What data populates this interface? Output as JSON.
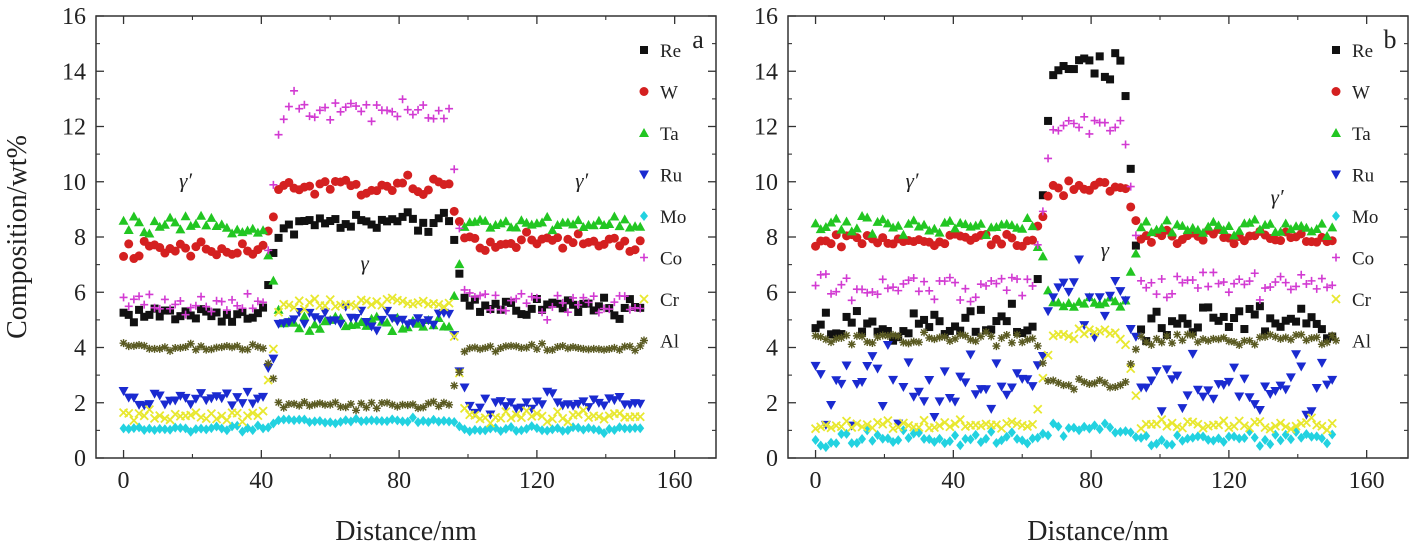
{
  "shared": {
    "ylabel": "Composition/wt%",
    "xlabel": "Distance/nm"
  },
  "colors": {
    "Re": "#111111",
    "W": "#d42020",
    "Ta": "#22c622",
    "Ru": "#1a2ad0",
    "Mo": "#22d2e0",
    "Co": "#d23ad2",
    "Cr": "#e8e830",
    "Al": "#5a5a22"
  },
  "chart_data": [
    {
      "type": "scatter",
      "panel": "a",
      "xlabel": "Distance/nm",
      "ylabel": "Composition/wt%",
      "xlim": [
        -8,
        172
      ],
      "ylim": [
        0,
        16
      ],
      "xticks": [
        "0",
        "40",
        "80",
        "120",
        "160"
      ],
      "yticks": [
        "0",
        "2",
        "4",
        "6",
        "8",
        "10",
        "12",
        "14",
        "16"
      ],
      "legend": [
        "Re",
        "W",
        "Ta",
        "Ru",
        "Mo",
        "Co",
        "Cr",
        "Al"
      ],
      "legend_position": "top-right",
      "annotations": [
        {
          "text": "γ′",
          "x": 18,
          "y": 9.8
        },
        {
          "text": "γ",
          "x": 70,
          "y": 6.8
        },
        {
          "text": "γ′",
          "x": 133,
          "y": 9.8
        }
      ],
      "series": [
        {
          "name": "Re",
          "marker": "square",
          "left": 5.2,
          "mid": 8.5,
          "right": 5.5,
          "noise": 0.25,
          "x": [
            0,
            150
          ],
          "step": 1.5,
          "transitions": [
            43,
            97
          ]
        },
        {
          "name": "W",
          "marker": "circle",
          "left": 7.5,
          "mid": 9.8,
          "right": 7.8,
          "noise": 0.25
        },
        {
          "name": "Ta",
          "marker": "tri-up",
          "left": 8.4,
          "mid": 4.9,
          "right": 8.5,
          "noise": 0.2
        },
        {
          "name": "Ru",
          "marker": "tri-down",
          "left": 2.1,
          "mid": 5.0,
          "right": 2.0,
          "noise": 0.25
        },
        {
          "name": "Mo",
          "marker": "diamond",
          "left": 1.05,
          "mid": 1.35,
          "right": 1.05,
          "noise": 0.08
        },
        {
          "name": "Co",
          "marker": "plus",
          "left": 5.6,
          "mid": 12.7,
          "right": 5.6,
          "noise": 0.35
        },
        {
          "name": "Cr",
          "marker": "cross",
          "left": 1.5,
          "mid": 5.6,
          "right": 1.5,
          "noise": 0.15
        },
        {
          "name": "Al",
          "marker": "star",
          "left": 4.0,
          "mid": 1.9,
          "right": 4.0,
          "noise": 0.12
        }
      ]
    },
    {
      "type": "scatter",
      "panel": "b",
      "xlabel": "Distance/nm",
      "ylabel": "",
      "xlim": [
        -8,
        172
      ],
      "ylim": [
        0,
        16
      ],
      "xticks": [
        "0",
        "40",
        "80",
        "120",
        "160"
      ],
      "yticks": [
        "0",
        "2",
        "4",
        "6",
        "8",
        "10",
        "12",
        "14",
        "16"
      ],
      "legend": [
        "Re",
        "W",
        "Ta",
        "Ru",
        "Mo",
        "Co",
        "Cr",
        "Al"
      ],
      "legend_position": "top-right",
      "annotations": [
        {
          "text": "γ′",
          "x": 28,
          "y": 9.8
        },
        {
          "text": "γ",
          "x": 84,
          "y": 7.3
        },
        {
          "text": "γ′",
          "x": 134,
          "y": 9.2
        }
      ],
      "series": [
        {
          "name": "Re",
          "marker": "square",
          "left": 4.8,
          "mid": 14.2,
          "right": 4.9,
          "noise": 0.4,
          "x": [
            0,
            150
          ],
          "step": 1.5,
          "transitions": [
            66,
            92
          ]
        },
        {
          "name": "W",
          "marker": "circle",
          "left": 7.9,
          "mid": 9.8,
          "right": 8.0,
          "noise": 0.18
        },
        {
          "name": "Ta",
          "marker": "tri-up",
          "left": 8.4,
          "mid": 5.6,
          "right": 8.4,
          "noise": 0.2
        },
        {
          "name": "Ru",
          "marker": "tri-down",
          "left": 2.6,
          "mid": 5.8,
          "right": 2.6,
          "noise": 0.9
        },
        {
          "name": "Mo",
          "marker": "diamond",
          "left": 0.7,
          "mid": 1.0,
          "right": 0.7,
          "noise": 0.2
        },
        {
          "name": "Co",
          "marker": "plus",
          "left": 6.2,
          "mid": 12.0,
          "right": 6.3,
          "noise": 0.35
        },
        {
          "name": "Cr",
          "marker": "cross",
          "left": 1.2,
          "mid": 4.5,
          "right": 1.2,
          "noise": 0.15
        },
        {
          "name": "Al",
          "marker": "star",
          "left": 4.3,
          "mid": 2.7,
          "right": 4.3,
          "noise": 0.15
        }
      ]
    }
  ]
}
